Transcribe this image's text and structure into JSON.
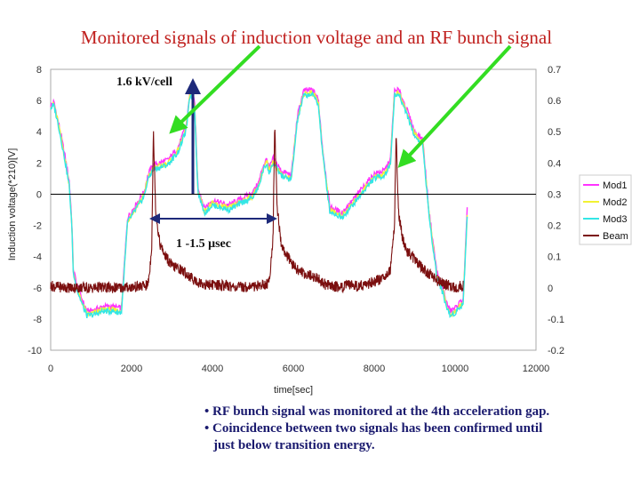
{
  "title": "Monitored signals of induction voltage and an RF bunch signal",
  "chart_data": {
    "type": "line",
    "xlabel": "time[sec]",
    "ylabel": "Induction voltage(*210)[V]",
    "xlim": [
      0,
      12000
    ],
    "ylim": [
      -10,
      8
    ],
    "y2lim": [
      -0.2,
      0.7
    ],
    "x_ticks": [
      "0",
      "2000",
      "4000",
      "6000",
      "8000",
      "10000",
      "12000"
    ],
    "y_ticks": [
      "8",
      "6",
      "4",
      "2",
      "0",
      "-2",
      "-4",
      "-6",
      "-8",
      "-10"
    ],
    "y2_ticks": [
      "0.7",
      "0.6",
      "0.5",
      "0.4",
      "0.3",
      "0.2",
      "0.1",
      "0",
      "-0.1",
      "-0.2"
    ],
    "legend_position": "right",
    "grid": false,
    "series": [
      {
        "name": "Mod1",
        "axis": "left",
        "color": "#ff33ff",
        "x": [
          0,
          80,
          200,
          350,
          460,
          520,
          560,
          660,
          800,
          900,
          1100,
          1300,
          1500,
          1750,
          1900,
          2200,
          2320,
          2380,
          2450,
          2550,
          2700,
          2900,
          3000,
          3150,
          3350,
          3450,
          3500,
          3560,
          3640,
          3800,
          4000,
          4400,
          4700,
          5000,
          5150,
          5250,
          5350,
          5400,
          5500,
          5700,
          5950,
          6100,
          6250,
          6450,
          6560,
          6620,
          6720,
          6900,
          7200,
          7500,
          7800,
          8000,
          8250,
          8400,
          8500,
          8600,
          8800,
          9000,
          9200,
          9350,
          9550,
          9720,
          9780,
          9880,
          10000,
          10100,
          10200,
          10300
        ],
        "y": [
          5.7,
          5.9,
          4.5,
          2.5,
          0.8,
          -1.6,
          -4.8,
          -5.9,
          -6.9,
          -7.5,
          -7.4,
          -7.2,
          -7.2,
          -7.3,
          -1.5,
          -0.3,
          0.2,
          1.0,
          1.5,
          1.9,
          2.0,
          2.2,
          2.5,
          3.0,
          4.4,
          6.7,
          6.5,
          5.8,
          0.5,
          -0.9,
          -0.4,
          -0.7,
          -0.3,
          0.1,
          0.8,
          1.8,
          2.3,
          1.6,
          2.3,
          1.5,
          1.2,
          5.0,
          6.6,
          6.7,
          6.4,
          6.0,
          3.0,
          -0.8,
          -1.2,
          -0.3,
          0.7,
          1.3,
          1.5,
          2.2,
          6.6,
          6.7,
          5.5,
          4.0,
          3.5,
          -1.0,
          -5.0,
          -6.2,
          -6.9,
          -7.5,
          -7.3,
          -7.0,
          -6.7,
          -1.0
        ]
      },
      {
        "name": "Mod2",
        "axis": "left",
        "color": "#f2f233",
        "x": [
          0,
          80,
          200,
          350,
          460,
          520,
          560,
          660,
          800,
          900,
          1100,
          1300,
          1500,
          1750,
          1900,
          2200,
          2320,
          2380,
          2450,
          2550,
          2700,
          2900,
          3000,
          3150,
          3350,
          3450,
          3500,
          3560,
          3640,
          3800,
          4000,
          4400,
          4700,
          5000,
          5150,
          5250,
          5350,
          5400,
          5500,
          5700,
          5950,
          6100,
          6250,
          6450,
          6560,
          6620,
          6720,
          6900,
          7200,
          7500,
          7800,
          8000,
          8250,
          8400,
          8500,
          8600,
          8800,
          9000,
          9200,
          9350,
          9550,
          9720,
          9780,
          9880,
          10000,
          10100,
          10200,
          10300
        ],
        "y": [
          5.6,
          5.8,
          4.4,
          2.3,
          0.6,
          -1.8,
          -5.0,
          -6.1,
          -7.1,
          -7.7,
          -7.6,
          -7.4,
          -7.4,
          -7.5,
          -1.7,
          -0.5,
          0.0,
          0.8,
          1.3,
          1.7,
          1.8,
          2.0,
          2.3,
          2.8,
          4.2,
          6.5,
          6.3,
          5.6,
          0.3,
          -1.1,
          -0.6,
          -0.9,
          -0.5,
          -0.1,
          0.6,
          1.6,
          2.1,
          1.4,
          2.1,
          1.3,
          1.0,
          4.8,
          6.4,
          6.5,
          6.2,
          5.8,
          2.8,
          -1.0,
          -1.4,
          -0.5,
          0.5,
          1.1,
          1.3,
          2.0,
          6.4,
          6.5,
          5.3,
          3.8,
          3.3,
          -1.2,
          -5.2,
          -6.4,
          -7.1,
          -7.7,
          -7.5,
          -7.2,
          -6.9,
          -1.2
        ]
      },
      {
        "name": "Mod3",
        "axis": "left",
        "color": "#33e6e6",
        "x": [
          0,
          80,
          200,
          350,
          460,
          520,
          560,
          660,
          800,
          900,
          1100,
          1300,
          1500,
          1750,
          1900,
          2200,
          2320,
          2380,
          2450,
          2550,
          2700,
          2900,
          3000,
          3150,
          3350,
          3450,
          3500,
          3560,
          3640,
          3800,
          4000,
          4400,
          4700,
          5000,
          5150,
          5250,
          5350,
          5400,
          5500,
          5700,
          5950,
          6100,
          6250,
          6450,
          6560,
          6620,
          6720,
          6900,
          7200,
          7500,
          7800,
          8000,
          8250,
          8400,
          8500,
          8600,
          8800,
          9000,
          9200,
          9350,
          9550,
          9720,
          9780,
          9880,
          10000,
          10100,
          10200,
          10300
        ],
        "y": [
          5.5,
          5.7,
          4.3,
          2.2,
          0.5,
          -1.9,
          -5.1,
          -6.2,
          -7.2,
          -7.8,
          -7.7,
          -7.5,
          -7.5,
          -7.6,
          -1.8,
          -0.6,
          -0.1,
          0.7,
          1.2,
          1.6,
          1.7,
          1.9,
          2.2,
          2.7,
          4.1,
          6.4,
          6.2,
          5.5,
          0.2,
          -1.2,
          -0.7,
          -1.0,
          -0.6,
          -0.2,
          0.5,
          1.5,
          2.0,
          1.3,
          2.0,
          1.2,
          0.9,
          4.7,
          6.3,
          6.4,
          6.1,
          5.7,
          2.7,
          -1.1,
          -1.5,
          -0.6,
          0.4,
          1.0,
          1.2,
          1.9,
          6.3,
          6.4,
          5.2,
          3.7,
          3.2,
          -1.3,
          -5.3,
          -6.5,
          -7.2,
          -7.8,
          -7.6,
          -7.3,
          -7.0,
          -1.3
        ]
      },
      {
        "name": "Beam",
        "axis": "right",
        "color": "#7b0f0f",
        "x": [
          0,
          100,
          200,
          400,
          600,
          800,
          1000,
          1200,
          1400,
          1600,
          1800,
          2000,
          2200,
          2400,
          2450,
          2500,
          2540,
          2600,
          2700,
          2800,
          3000,
          3200,
          3400,
          3600,
          3800,
          4000,
          4200,
          4400,
          4600,
          4800,
          5000,
          5200,
          5400,
          5450,
          5500,
          5540,
          5600,
          5700,
          5800,
          6000,
          6200,
          6400,
          6600,
          6800,
          7000,
          7200,
          7400,
          7600,
          7800,
          8000,
          8200,
          8400,
          8450,
          8500,
          8540,
          8600,
          8700,
          8800,
          9000,
          9200,
          9400,
          9600,
          9800,
          10000,
          10200
        ],
        "y": [
          0.007,
          0.004,
          0.003,
          0.001,
          0.0,
          0.001,
          -0.001,
          0.002,
          0.0,
          0.0,
          0.001,
          0.002,
          0.004,
          0.008,
          0.055,
          0.14,
          0.5,
          0.24,
          0.14,
          0.11,
          0.07,
          0.06,
          0.04,
          0.02,
          0.01,
          0.01,
          0.008,
          0.006,
          0.002,
          0.003,
          0.005,
          0.008,
          0.015,
          0.09,
          0.17,
          0.52,
          0.26,
          0.14,
          0.11,
          0.07,
          0.05,
          0.04,
          0.03,
          0.01,
          0.005,
          0.003,
          0.008,
          0.007,
          0.01,
          0.02,
          0.03,
          0.06,
          0.13,
          0.2,
          0.5,
          0.24,
          0.16,
          0.12,
          0.09,
          0.06,
          0.04,
          0.02,
          0.01,
          0.0,
          0.007
        ]
      }
    ],
    "annotations": [
      {
        "text": "1.6 kV/cell"
      },
      {
        "text": "1 -1.5 μsec"
      }
    ]
  },
  "notes": [
    "• RF bunch signal was monitored at the 4th acceleration gap.",
    "• Coincidence between two signals has been confirmed until",
    "just below transition energy."
  ]
}
